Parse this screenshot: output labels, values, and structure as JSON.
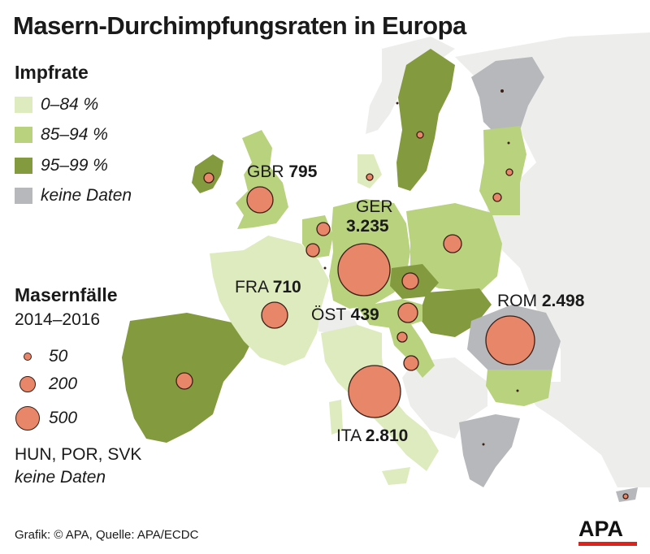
{
  "title": "Masern-Durchimpfungsraten in Europa",
  "legend": {
    "heading": "Impfrate",
    "items": [
      {
        "label": "0–84 %",
        "color": "#deebbf"
      },
      {
        "label": "85–94 %",
        "color": "#b9d27e"
      },
      {
        "label": "95–99 %",
        "color": "#849a3e"
      },
      {
        "label": "keine Daten",
        "color": "#b7b8bb"
      }
    ]
  },
  "cases_legend": {
    "heading": "Masernfälle",
    "period": "2014–2016",
    "sizes": [
      {
        "label": "50",
        "value": 50
      },
      {
        "label": "200",
        "value": 200
      },
      {
        "label": "500",
        "value": 500
      }
    ]
  },
  "no_data_note": {
    "countries": "HUN, POR, SVK",
    "text": "keine Daten"
  },
  "labels": {
    "gbr": {
      "code": "GBR",
      "value": "795"
    },
    "ger": {
      "code": "GER",
      "value": "3.235"
    },
    "fra": {
      "code": "FRA",
      "value": "710"
    },
    "ost": {
      "code": "ÖST",
      "value": "439"
    },
    "rom": {
      "code": "ROM",
      "value": "2.498"
    },
    "ita": {
      "code": "ITA",
      "value": "2.810"
    }
  },
  "footer": "Grafik: © APA, Quelle: APA/ECDC",
  "logo": "APA",
  "colors": {
    "background_land": "#ededeb",
    "sea": "#ffffff",
    "circle_fill": "#e8866a",
    "circle_stroke": "#3a1f16",
    "border": "#ffffff",
    "logo_red": "#e0221c"
  }
}
